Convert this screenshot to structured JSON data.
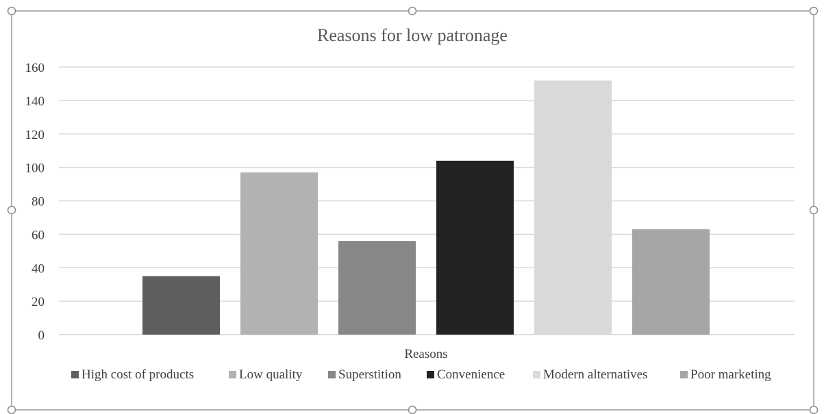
{
  "chart_data": {
    "type": "bar",
    "title": "Reasons for low patronage",
    "xlabel": "Reasons",
    "ylabel": "",
    "ylim": [
      0,
      160
    ],
    "yticks": [
      0,
      20,
      40,
      60,
      80,
      100,
      120,
      140,
      160
    ],
    "grid": true,
    "legend_position": "bottom",
    "series": [
      {
        "name": "High cost of products",
        "value": 35,
        "color": "#5f5f5f"
      },
      {
        "name": "Low quality",
        "value": 97,
        "color": "#b2b2b2"
      },
      {
        "name": "Superstition",
        "value": 56,
        "color": "#878787"
      },
      {
        "name": "Convenience",
        "value": 104,
        "color": "#222222"
      },
      {
        "name": "Modern alternatives",
        "value": 152,
        "color": "#d9d9d9"
      },
      {
        "name": "Poor marketing",
        "value": 63,
        "color": "#a6a6a6"
      }
    ]
  }
}
